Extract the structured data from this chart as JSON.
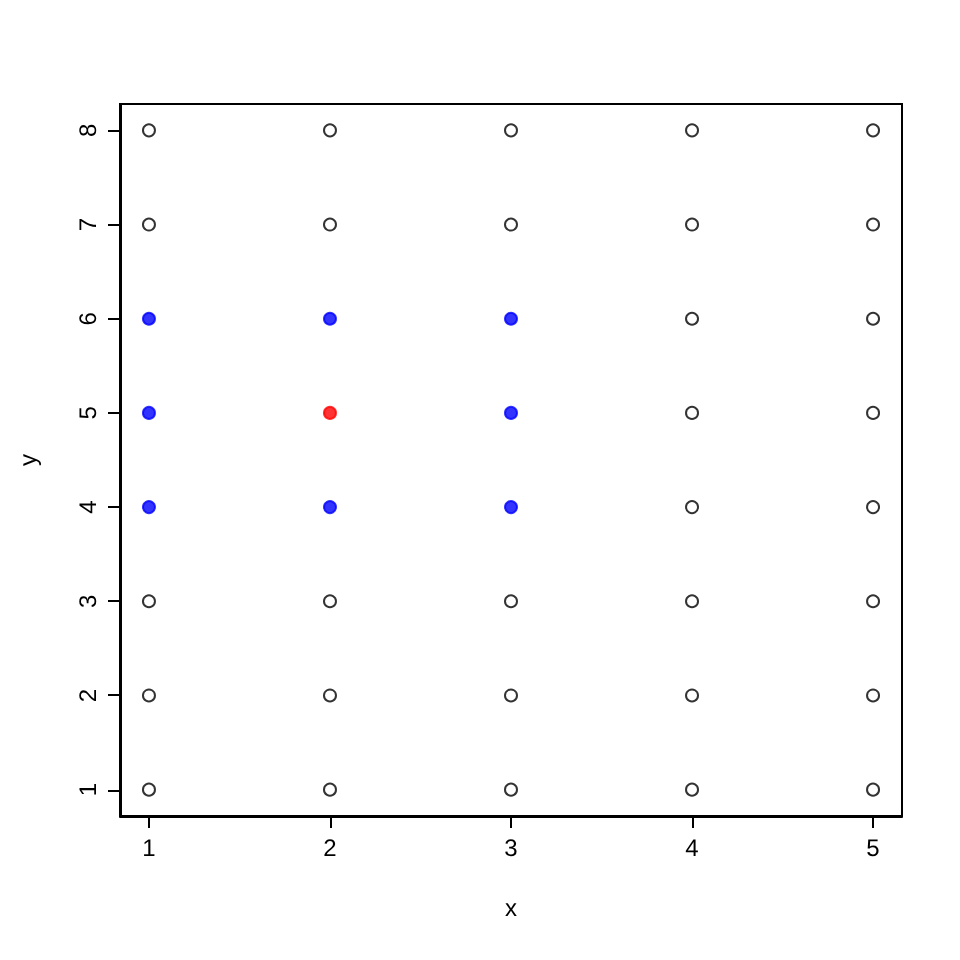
{
  "chart_data": {
    "type": "scatter",
    "xlabel": "x",
    "ylabel": "y",
    "xlim": [
      0.84,
      5.16
    ],
    "ylim": [
      0.72,
      8.28
    ],
    "xticks": [
      1,
      2,
      3,
      4,
      5
    ],
    "yticks": [
      1,
      2,
      3,
      4,
      5,
      6,
      7,
      8
    ],
    "marker": "circle",
    "series": [
      {
        "color": "#000000",
        "x": [
          1,
          1,
          1,
          1,
          1,
          2,
          2,
          2,
          2,
          2,
          3,
          3,
          3,
          3,
          3,
          4,
          4,
          4,
          4,
          4,
          4,
          4,
          4,
          5,
          5,
          5,
          5,
          5,
          5,
          5,
          5
        ],
        "values": [
          1,
          2,
          3,
          7,
          8,
          1,
          2,
          3,
          7,
          8,
          1,
          2,
          3,
          7,
          8,
          1,
          2,
          3,
          4,
          5,
          6,
          7,
          8,
          1,
          2,
          3,
          4,
          5,
          6,
          7,
          8
        ]
      },
      {
        "color": "#0000ff",
        "x": [
          1,
          1,
          1,
          2,
          2,
          3,
          3,
          3
        ],
        "values": [
          4,
          5,
          6,
          4,
          6,
          4,
          5,
          6
        ]
      },
      {
        "color": "#ff0000",
        "x": [
          2
        ],
        "values": [
          5
        ]
      }
    ]
  }
}
